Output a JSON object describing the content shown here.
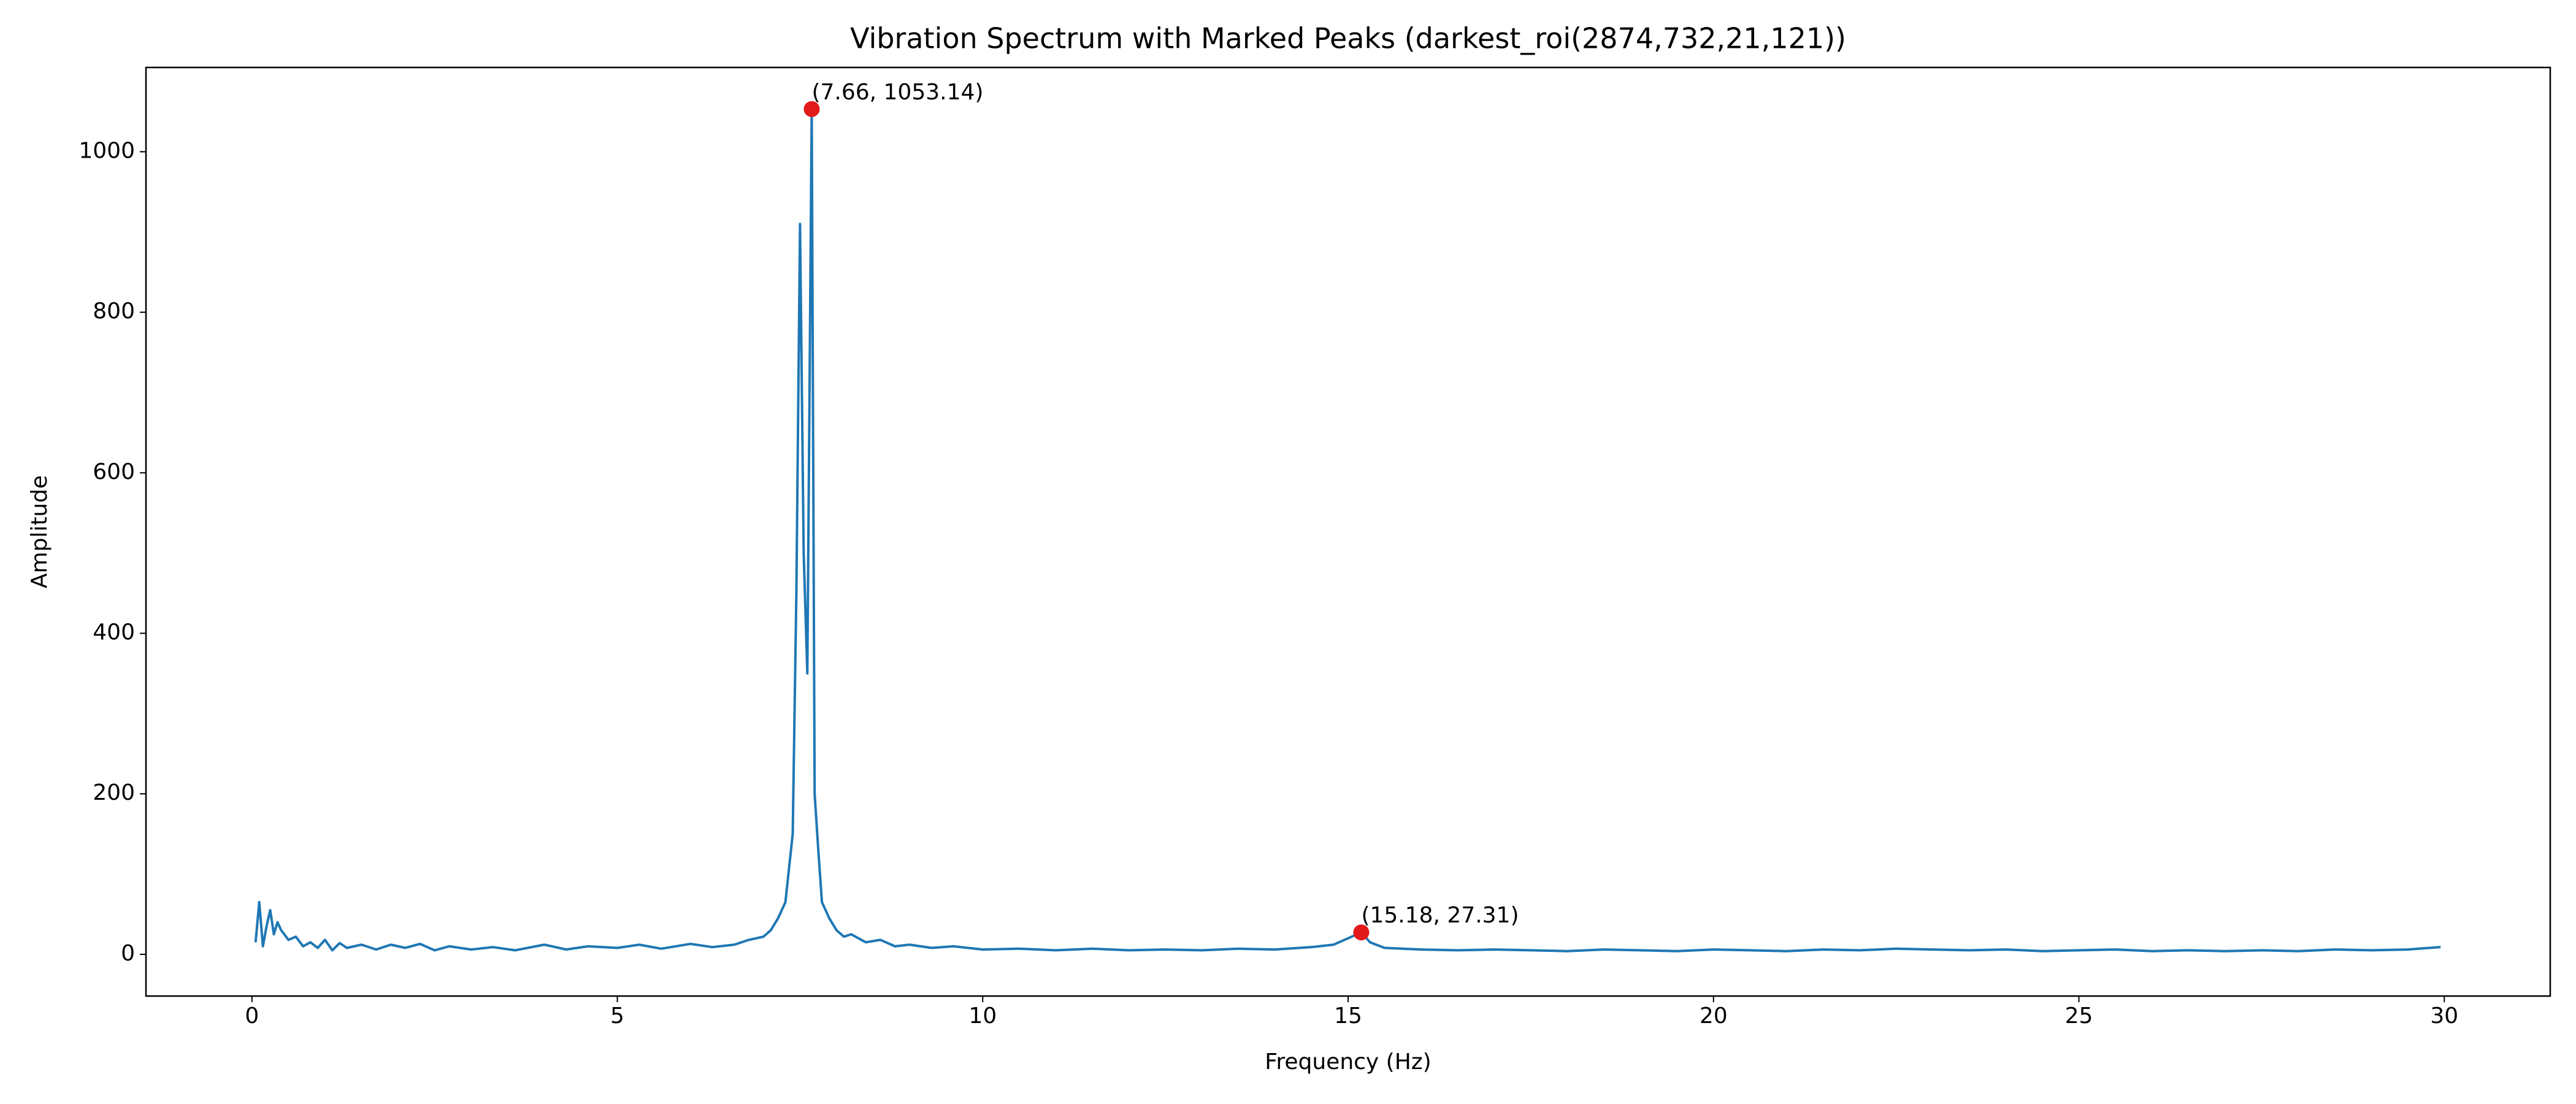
{
  "chart_data": {
    "type": "line",
    "title": "Vibration Spectrum with Marked Peaks (darkest_roi(2874,732,21,121))",
    "x_label": "Frequency (Hz)",
    "y_label": "Amplitude",
    "xlim": [
      -1.45,
      31.45
    ],
    "ylim": [
      -52,
      1105
    ],
    "xticks": [
      0,
      5,
      10,
      15,
      20,
      25,
      30
    ],
    "yticks": [
      0,
      200,
      400,
      600,
      800,
      1000
    ],
    "series": [
      {
        "type": "line",
        "color": "#1f77b4",
        "x": [
          0.05,
          0.1,
          0.15,
          0.2,
          0.25,
          0.3,
          0.35,
          0.4,
          0.5,
          0.6,
          0.7,
          0.8,
          0.9,
          1.0,
          1.1,
          1.2,
          1.3,
          1.5,
          1.7,
          1.9,
          2.1,
          2.3,
          2.5,
          2.7,
          3.0,
          3.3,
          3.6,
          4.0,
          4.3,
          4.6,
          5.0,
          5.3,
          5.6,
          6.0,
          6.3,
          6.6,
          6.8,
          7.0,
          7.1,
          7.2,
          7.3,
          7.4,
          7.45,
          7.5,
          7.55,
          7.6,
          7.63,
          7.66,
          7.7,
          7.75,
          7.8,
          7.9,
          8.0,
          8.1,
          8.2,
          8.4,
          8.6,
          8.8,
          9.0,
          9.3,
          9.6,
          10,
          10.5,
          11,
          11.5,
          12,
          12.5,
          13,
          13.5,
          14,
          14.5,
          14.8,
          15.0,
          15.18,
          15.3,
          15.5,
          16,
          16.5,
          17,
          17.5,
          18,
          18.5,
          19,
          19.5,
          20,
          20.5,
          21,
          21.5,
          22,
          22.5,
          23,
          23.5,
          24,
          24.5,
          25,
          25.5,
          26,
          26.5,
          27,
          27.5,
          28,
          28.5,
          29,
          29.5,
          29.95
        ],
        "values": [
          15,
          65,
          10,
          35,
          55,
          25,
          40,
          30,
          18,
          22,
          10,
          15,
          8,
          18,
          5,
          14,
          8,
          12,
          6,
          12,
          8,
          13,
          5,
          10,
          6,
          9,
          5,
          12,
          6,
          10,
          8,
          12,
          7,
          13,
          9,
          12,
          18,
          22,
          30,
          45,
          65,
          150,
          450,
          910,
          500,
          350,
          700,
          1053.14,
          200,
          130,
          65,
          45,
          30,
          22,
          25,
          15,
          18,
          10,
          12,
          8,
          10,
          6,
          7,
          5,
          7,
          5,
          6,
          5,
          7,
          6,
          9,
          12,
          20,
          27.31,
          15,
          8,
          6,
          5,
          6,
          5,
          4,
          6,
          5,
          4,
          6,
          5,
          4,
          6,
          5,
          7,
          6,
          5,
          6,
          4,
          5,
          6,
          4,
          5,
          4,
          5,
          4,
          6,
          5,
          6,
          9
        ]
      },
      {
        "type": "scatter",
        "color": "#e31a1c",
        "x": [
          7.66,
          15.18
        ],
        "values": [
          1053.14,
          27.31
        ],
        "value_labels": [
          "(7.66, 1053.14)",
          "(15.18, 27.31)"
        ]
      }
    ]
  }
}
